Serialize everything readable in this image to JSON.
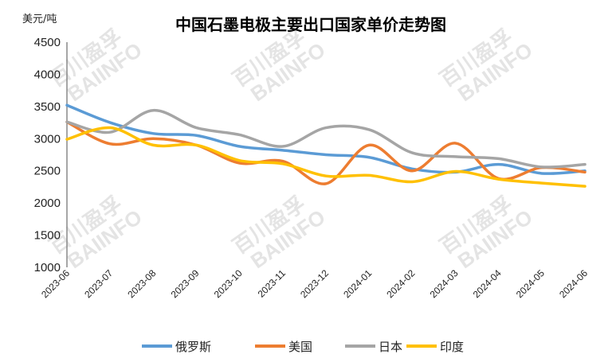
{
  "chart_data": {
    "type": "line",
    "title": "中国石墨电极主要出口国家单价走势图",
    "ylabel": "美元/吨",
    "xlabel": "",
    "ylim": [
      1000,
      4500
    ],
    "yticks": [
      "1000",
      "1500",
      "2000",
      "2500",
      "3000",
      "3500",
      "4000",
      "4500"
    ],
    "categories": [
      "2023-06",
      "2023-07",
      "2023-08",
      "2023-09",
      "2023-10",
      "2023-11",
      "2023-12",
      "2024-01",
      "2024-02",
      "2024-03",
      "2024-04",
      "2024-05",
      "2024-06"
    ],
    "grid": false,
    "legend_position": "bottom",
    "series": [
      {
        "name": "俄罗斯",
        "color": "#5B9BD5",
        "values": [
          3520,
          3250,
          3080,
          3050,
          2880,
          2820,
          2750,
          2710,
          2530,
          2480,
          2600,
          2460,
          2500
        ]
      },
      {
        "name": "美国",
        "color": "#ED7D31",
        "values": [
          3260,
          2920,
          3000,
          2900,
          2620,
          2650,
          2300,
          2900,
          2500,
          2930,
          2380,
          2550,
          2480
        ]
      },
      {
        "name": "日本",
        "color": "#A5A5A5",
        "values": [
          3260,
          3100,
          3440,
          3170,
          3060,
          2880,
          3170,
          3140,
          2780,
          2720,
          2690,
          2560,
          2600
        ]
      },
      {
        "name": "印度",
        "color": "#FFC000",
        "values": [
          2990,
          3170,
          2900,
          2900,
          2660,
          2610,
          2420,
          2430,
          2330,
          2490,
          2370,
          2310,
          2260
        ]
      }
    ]
  },
  "watermark": {
    "cn": "百川盈孚",
    "en": "BAIINFO"
  }
}
